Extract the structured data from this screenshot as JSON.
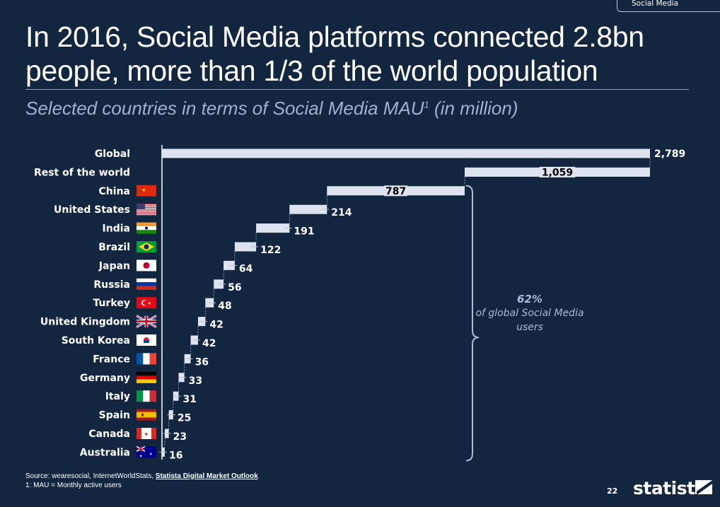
{
  "tab_label": "Social Media",
  "header": {
    "title": "In 2016, Social Media platforms connected 2.8bn people, more than 1/3 of the world population",
    "subtitle_main": "Selected countries in terms of Social Media MAU",
    "subtitle_sup": "1",
    "subtitle_tail": " (in million)"
  },
  "annotation": {
    "percent": "62%",
    "text": "of global Social Media users"
  },
  "footer": {
    "source_prefix": "Source: wearesocial, InternetWorldStats, ",
    "source_link": "Statista Digital Market Outlook",
    "footnote": "1: MAU = Monthly active users",
    "page_number": "22",
    "logo_text": "statista"
  },
  "colors": {
    "background": "#13263f",
    "bar": "#dde4ef",
    "accent_text": "#9fb2cf"
  },
  "chart_data": {
    "type": "bar",
    "subtype": "waterfall-horizontal",
    "title": "Selected countries in terms of Social Media MAU (in million)",
    "xlabel": "",
    "ylabel": "",
    "categories": [
      "Global",
      "Rest of the world",
      "China",
      "United States",
      "India",
      "Brazil",
      "Japan",
      "Russia",
      "Turkey",
      "United Kingdom",
      "South Korea",
      "France",
      "Germany",
      "Italy",
      "Spain",
      "Canada",
      "Australia"
    ],
    "values": [
      2789,
      1059,
      787,
      214,
      191,
      122,
      64,
      56,
      48,
      42,
      42,
      36,
      33,
      31,
      25,
      23,
      16
    ],
    "value_labels": [
      "2,789",
      "1,059",
      "787",
      "214",
      "191",
      "122",
      "64",
      "56",
      "48",
      "42",
      "42",
      "36",
      "33",
      "31",
      "25",
      "23",
      "16"
    ],
    "flags": [
      "",
      "",
      "china-flag",
      "united-states-flag",
      "india-flag",
      "brazil-flag",
      "japan-flag",
      "russia-flag",
      "turkey-flag",
      "united-kingdom-flag",
      "south-korea-flag",
      "france-flag",
      "germany-flag",
      "italy-flag",
      "spain-flag",
      "canada-flag",
      "australia-flag"
    ],
    "xlim": [
      0,
      2789
    ],
    "grid": false,
    "legend": "none"
  }
}
